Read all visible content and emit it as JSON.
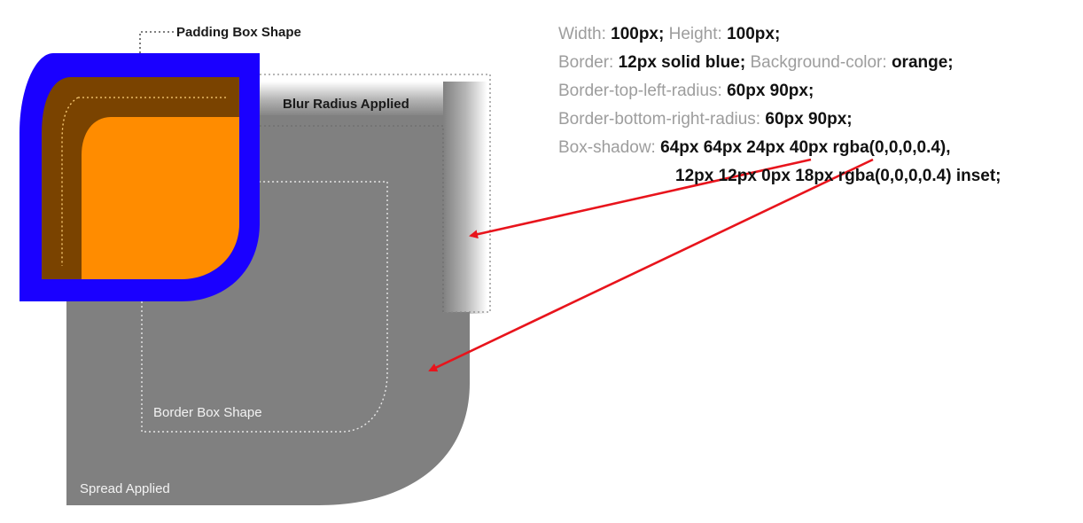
{
  "labels": {
    "padding_box_shape": "Padding Box Shape",
    "blur_radius_applied": "Blur Radius Applied",
    "border_box_shape": "Border Box Shape",
    "spread_applied": "Spread Applied"
  },
  "spec": {
    "width_key": "Width:",
    "width_val": "100px;",
    "height_key": "Height:",
    "height_val": "100px;",
    "border_key": "Border:",
    "border_val": "12px solid blue;",
    "bg_key": "Background-color:",
    "bg_val": "orange;",
    "btl_key": "Border-top-left-radius:",
    "btl_val": "60px 90px;",
    "bbr_key": "Border-bottom-right-radius:",
    "bbr_val": "60px 90px;",
    "shadow_key": "Box-shadow:",
    "shadow_val1": "64px 64px 24px 40px rgba(0,0,0,0.4),",
    "shadow_val2": "12px 12px 0px 18px rgba(0,0,0,0.4) inset;"
  },
  "colors": {
    "border": "#1a00ff",
    "background": "#ff8c00",
    "inset_shadow": "#7a4300",
    "spread_shadow": "#808080",
    "arrow": "#e8141c"
  }
}
